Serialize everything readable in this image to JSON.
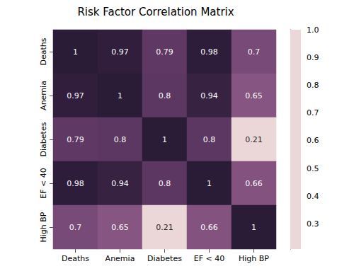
{
  "chart_data": {
    "type": "heatmap",
    "title": "Risk Factor Correlation Matrix",
    "categories": [
      "Deaths",
      "Anemia",
      "Diabetes",
      "EF < 40",
      "High BP"
    ],
    "matrix": [
      [
        1,
        0.97,
        0.79,
        0.98,
        0.7
      ],
      [
        0.97,
        1,
        0.8,
        0.94,
        0.65
      ],
      [
        0.79,
        0.8,
        1,
        0.8,
        0.21
      ],
      [
        0.98,
        0.94,
        0.8,
        1,
        0.66
      ],
      [
        0.7,
        0.65,
        0.21,
        0.66,
        1
      ]
    ],
    "data_labels": true,
    "colorbar_range": [
      0.21,
      1.0
    ],
    "colorbar_ticks": [
      0.3,
      0.4,
      0.5,
      0.6,
      0.7,
      0.8,
      0.9,
      {
        "value": 1.0,
        "label": "1.0"
      }
    ]
  }
}
